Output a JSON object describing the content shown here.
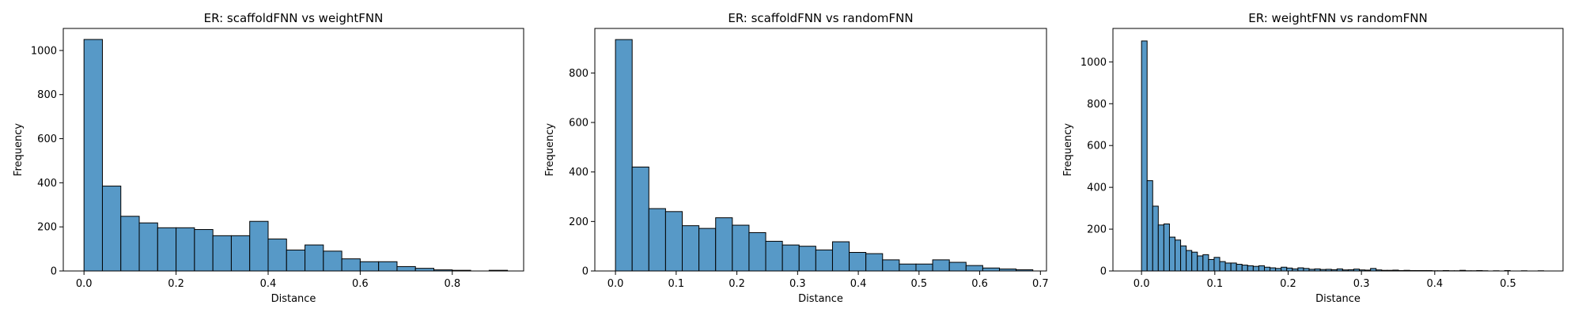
{
  "colors": {
    "bar_fill": "#5799c7",
    "bar_edge": "#000000",
    "axis": "#000000"
  },
  "chart_data": [
    {
      "type": "histogram",
      "title": "ER: scaffoldFNN vs weightFNN",
      "xlabel": "Distance",
      "ylabel": "Frequency",
      "xlim": [
        -0.045,
        0.955
      ],
      "ylim": [
        0,
        1100
      ],
      "xticks": [
        0.0,
        0.2,
        0.4,
        0.6,
        0.8
      ],
      "xtick_labels": [
        "0.0",
        "0.2",
        "0.4",
        "0.6",
        "0.8"
      ],
      "yticks": [
        0,
        200,
        400,
        600,
        800,
        1000
      ],
      "ytick_labels": [
        "0",
        "200",
        "400",
        "600",
        "800",
        "1000"
      ],
      "bin_edges": [
        0.0,
        0.04,
        0.08,
        0.12,
        0.16,
        0.2,
        0.24,
        0.28,
        0.32,
        0.36,
        0.4,
        0.44,
        0.48,
        0.52,
        0.56,
        0.6,
        0.64,
        0.68,
        0.72,
        0.76,
        0.8,
        0.84,
        0.88,
        0.92
      ],
      "counts": [
        1050,
        385,
        248,
        218,
        196,
        196,
        188,
        160,
        160,
        225,
        145,
        95,
        118,
        90,
        55,
        42,
        42,
        20,
        12,
        5,
        3,
        0,
        3
      ]
    },
    {
      "type": "histogram",
      "title": "ER: scaffoldFNN vs randomFNN",
      "xlabel": "Distance",
      "ylabel": "Frequency",
      "xlim": [
        -0.034,
        0.71
      ],
      "ylim": [
        0,
        980
      ],
      "xticks": [
        0.0,
        0.1,
        0.2,
        0.3,
        0.4,
        0.5,
        0.6,
        0.7
      ],
      "xtick_labels": [
        "0.0",
        "0.1",
        "0.2",
        "0.3",
        "0.4",
        "0.5",
        "0.6",
        "0.7"
      ],
      "yticks": [
        0,
        200,
        400,
        600,
        800
      ],
      "ytick_labels": [
        "0",
        "200",
        "400",
        "600",
        "800"
      ],
      "bin_edges": [
        0.0,
        0.0275,
        0.055,
        0.0825,
        0.11,
        0.1375,
        0.165,
        0.1925,
        0.22,
        0.2475,
        0.275,
        0.3025,
        0.33,
        0.3575,
        0.385,
        0.4125,
        0.44,
        0.4675,
        0.495,
        0.5225,
        0.55,
        0.5775,
        0.605,
        0.6325,
        0.66,
        0.6875
      ],
      "counts": [
        935,
        420,
        252,
        240,
        183,
        172,
        215,
        185,
        155,
        120,
        105,
        100,
        85,
        118,
        75,
        70,
        45,
        28,
        28,
        45,
        35,
        22,
        12,
        8,
        5
      ]
    },
    {
      "type": "histogram",
      "title": "ER: weightFNN vs randomFNN",
      "xlabel": "Distance",
      "ylabel": "Frequency",
      "xlim": [
        -0.039,
        0.575
      ],
      "ylim": [
        0,
        1160
      ],
      "xticks": [
        0.0,
        0.1,
        0.2,
        0.3,
        0.4,
        0.5
      ],
      "xtick_labels": [
        "0.0",
        "0.1",
        "0.2",
        "0.3",
        "0.4",
        "0.5"
      ],
      "yticks": [
        0,
        200,
        400,
        600,
        800,
        1000
      ],
      "ytick_labels": [
        "0",
        "200",
        "400",
        "600",
        "800",
        "1000"
      ],
      "bin_width": 0.00762,
      "counts": [
        1100,
        432,
        310,
        220,
        225,
        162,
        148,
        120,
        98,
        90,
        72,
        78,
        55,
        65,
        45,
        38,
        38,
        32,
        28,
        25,
        22,
        25,
        18,
        15,
        12,
        18,
        14,
        10,
        15,
        12,
        8,
        10,
        7,
        8,
        6,
        10,
        5,
        6,
        9,
        5,
        4,
        12,
        5,
        3,
        3,
        4,
        2,
        3,
        2,
        2,
        2,
        2,
        1,
        1,
        2,
        1,
        1,
        3,
        1,
        1,
        2,
        1,
        0,
        1,
        0,
        2,
        0,
        0,
        1,
        0,
        0,
        1
      ]
    }
  ]
}
